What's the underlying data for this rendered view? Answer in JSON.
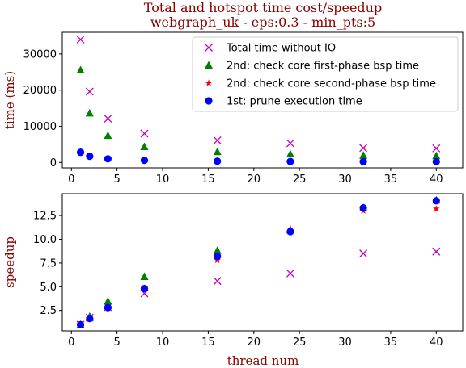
{
  "figure": {
    "title_line1": "Total and hotspot time cost/speedup",
    "title_line2": "webgraph_uk - eps:0.3 - min_pts:5",
    "colors": {
      "title": "#8b0000",
      "top_ylabel": "#8b0000",
      "bottom_ylabel": "#8b0000",
      "xlabel": "#8b0000"
    }
  },
  "chart_data": [
    {
      "type": "scatter",
      "ylabel": "time (ms)",
      "xlabel": "",
      "xlim": [
        -1,
        42.9
      ],
      "ylim": [
        -1500,
        36000
      ],
      "xticks": [
        0,
        5,
        10,
        15,
        20,
        25,
        30,
        35,
        40
      ],
      "yticks": [
        0,
        10000,
        20000,
        30000
      ],
      "legend_position": "top-right",
      "x": [
        1,
        2,
        4,
        8,
        16,
        24,
        32,
        40
      ],
      "series": [
        {
          "name": "Total time without IO",
          "marker": "x",
          "color": "#bf00bf",
          "values": [
            34000,
            19600,
            12100,
            8000,
            6100,
            5300,
            4000,
            3900
          ]
        },
        {
          "name": "2nd: check core first-phase bsp time",
          "marker": "triangle",
          "color": "#008000",
          "values": [
            25500,
            13600,
            7400,
            4300,
            2900,
            2300,
            1900,
            1800
          ]
        },
        {
          "name": "2nd: check core second-phase bsp time",
          "marker": "star",
          "color": "#ff0000",
          "values": [
            3100,
            1800,
            1100,
            620,
            400,
            280,
            240,
            230
          ]
        },
        {
          "name": "1st: prune execution time",
          "marker": "circle",
          "color": "#0000ff",
          "values": [
            2800,
            1700,
            1000,
            580,
            350,
            270,
            220,
            210
          ]
        }
      ]
    },
    {
      "type": "scatter",
      "ylabel": "speedup",
      "xlabel": "thread num",
      "xlim": [
        -1,
        42.9
      ],
      "ylim": [
        0.35,
        14.8
      ],
      "xticks": [
        0,
        5,
        10,
        15,
        20,
        25,
        30,
        35,
        40
      ],
      "yticks": [
        2.5,
        5.0,
        7.5,
        10.0,
        12.5
      ],
      "ytick_labels": [
        "2.5",
        "5.0",
        "7.5",
        "10.0",
        "12.5"
      ],
      "x": [
        1,
        2,
        4,
        8,
        16,
        24,
        32,
        40
      ],
      "series": [
        {
          "marker": "x",
          "color": "#bf00bf",
          "values": [
            1.0,
            1.75,
            2.85,
            4.3,
            5.6,
            6.4,
            8.5,
            8.7
          ]
        },
        {
          "marker": "triangle",
          "color": "#008000",
          "values": [
            1.0,
            1.85,
            3.45,
            6.05,
            8.8,
            11.0,
            13.3,
            14.1
          ]
        },
        {
          "marker": "star",
          "color": "#ff0000",
          "values": [
            1.0,
            1.7,
            2.85,
            4.85,
            7.8,
            11.1,
            13.0,
            13.2
          ]
        },
        {
          "marker": "circle",
          "color": "#0000ff",
          "values": [
            1.0,
            1.65,
            2.8,
            4.8,
            8.2,
            10.8,
            13.3,
            14.05
          ]
        }
      ]
    }
  ]
}
